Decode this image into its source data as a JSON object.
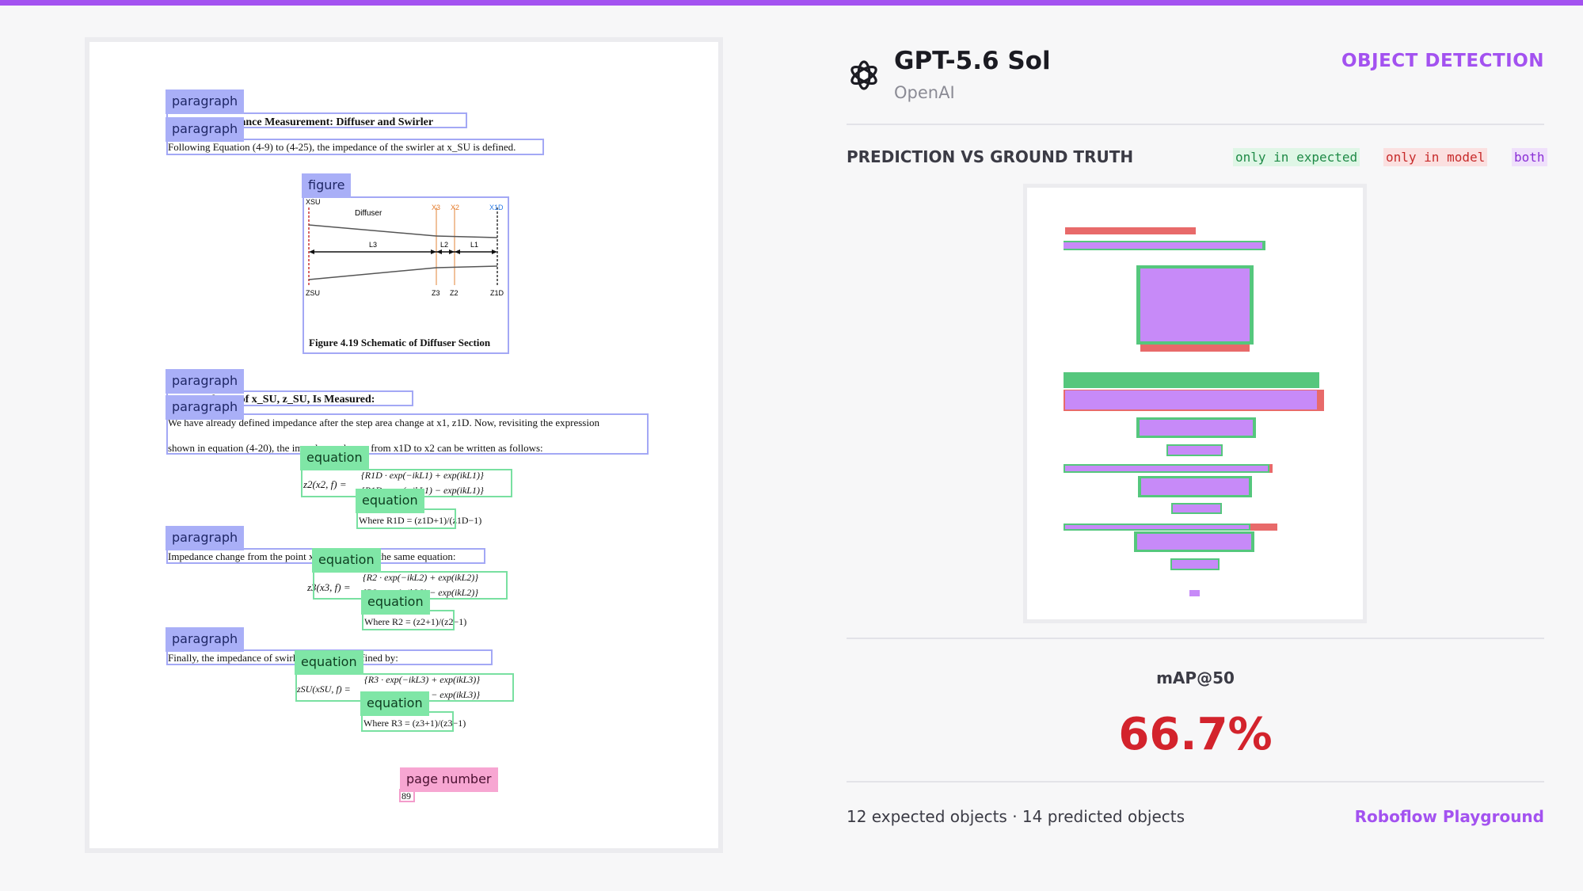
{
  "header": {
    "model_name": "GPT-5.6 Sol",
    "vendor": "OpenAI",
    "task": "OBJECT DETECTION",
    "logo_icon": "openai-logo-icon"
  },
  "comparison": {
    "title": "PREDICTION VS GROUND TRUTH",
    "legend": {
      "only_expected": "only in expected",
      "only_model": "only in model",
      "both": "both"
    },
    "colors": {
      "only_expected": "#55c77d",
      "only_model": "#e86a6a",
      "both": "#c78af8"
    }
  },
  "metric": {
    "label": "mAP@50",
    "value": "66.7%"
  },
  "footer": {
    "counts": "12 expected objects · 14 predicted objects",
    "link": "Roboflow Playground"
  },
  "labels": {
    "paragraph": "paragraph",
    "figure": "figure",
    "equation": "equation",
    "page_number": "page number"
  },
  "document": {
    "heading1": "4.5.3 Impedance Measurement: Diffuser and Swirler",
    "para1": "Following Equation (4-9) to (4-25), the impedance of the swirler at x_SU is defined.",
    "figure_caption": "Figure 4.19 Schematic of Diffuser Section",
    "fig_diffuser": "Diffuser",
    "fig_xsu": "XSU",
    "fig_zsu": "ZSU",
    "fig_x3": "X3",
    "fig_x2": "X2",
    "fig_x1d": "X1D",
    "fig_z3": "Z3",
    "fig_z2": "Z2",
    "fig_z1d": "Z1D",
    "fig_l3": "L3",
    "fig_l2": "L2",
    "fig_l1": "L1",
    "heading2": "Impedance of x_SU, z_SU, Is Measured:",
    "para2a": "We have already defined impedance after the step area change at x1, z1D. Now, revisiting the expression",
    "para2b": "shown in equation (4-20), the impedance change from x1D to x2 can be written as follows:",
    "eq1a": "{R1D · exp(−ikL1) + exp(ikL1)}",
    "eq1b": "{R1D · exp(−ikL1) − exp(ikL1)}",
    "eq1lhs": "z2(x2, f) =",
    "eq1where": "Where   R1D = (z1D+1)/(z1D−1)",
    "para3": "Impedance change from the point x2 to x3 follows the same equation:",
    "eq2a": "{R2 · exp(−ikL2) + exp(ikL2)}",
    "eq2b": "{R2 · exp(−ikL2) − exp(ikL2)}",
    "eq2lhs": "z3(x3, f) =",
    "eq2where": "Where   R2 = (z2+1)/(z2−1)",
    "para4": "Finally, the impedance of swirler at x_SU is defined by:",
    "eq3a": "{R3 · exp(−ikL3) + exp(ikL3)}",
    "eq3b": "{R3 · exp(−ikL3) − exp(ikL3)}",
    "eq3lhs": "zSU(xSU, f) =",
    "eq3where": "Where   R3 = (z3+1)/(z3−1)",
    "page_number": "89"
  }
}
